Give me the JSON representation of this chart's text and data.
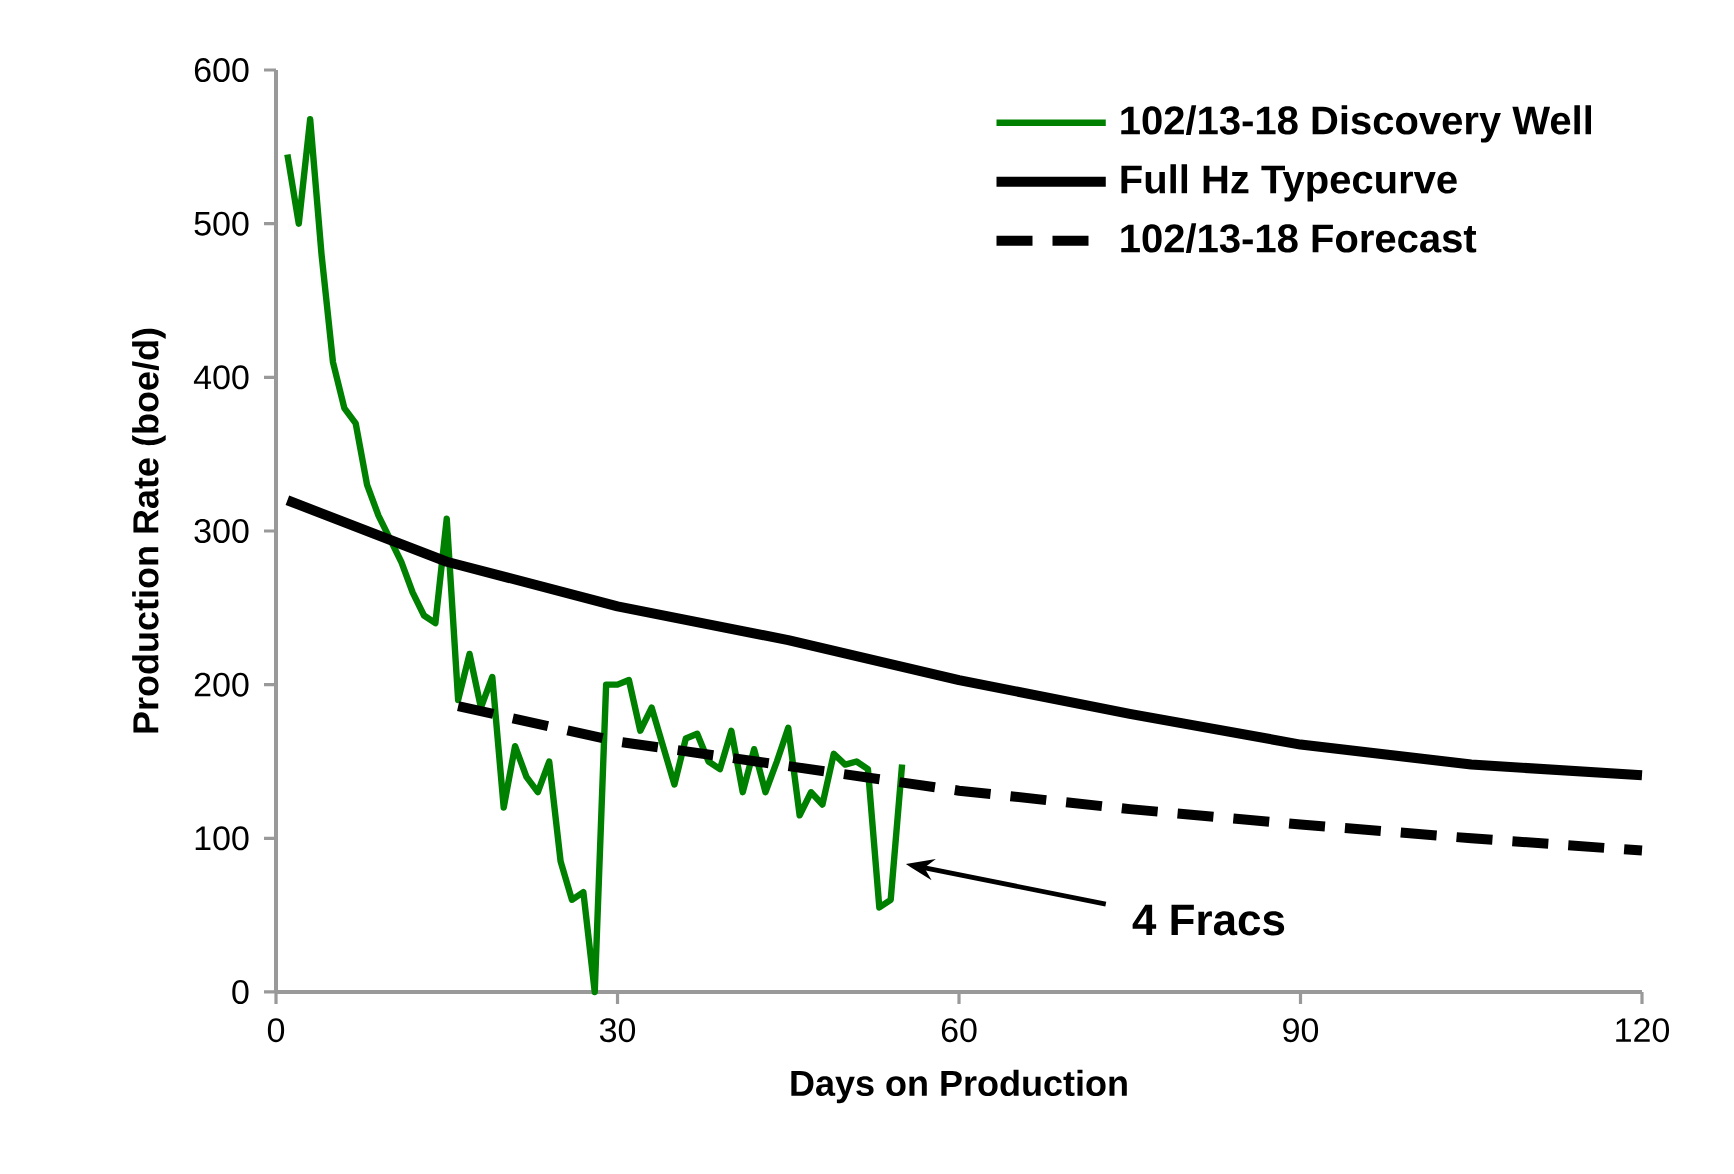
{
  "chart_data": {
    "type": "line",
    "xlabel": "Days on Production",
    "ylabel": "Production Rate (boe/d)",
    "xlim": [
      0,
      120
    ],
    "ylim": [
      0,
      600
    ],
    "xticks": [
      0,
      30,
      60,
      90,
      120
    ],
    "yticks": [
      0,
      100,
      200,
      300,
      400,
      500,
      600
    ],
    "legend": "top right",
    "series": [
      {
        "name": "102/13-18 Discovery Well",
        "color": "#008000",
        "x": [
          1,
          2,
          3,
          4,
          5,
          6,
          7,
          8,
          9,
          10,
          11,
          12,
          13,
          14,
          15,
          16,
          17,
          18,
          19,
          20,
          21,
          22,
          23,
          24,
          25,
          26,
          27,
          28,
          29,
          30,
          31,
          32,
          33,
          34,
          35,
          36,
          37,
          38,
          39,
          40,
          41,
          42,
          43,
          44,
          45,
          46,
          47,
          48,
          49,
          50,
          51,
          52,
          53,
          54,
          55
        ],
        "values": [
          545,
          500,
          568,
          480,
          410,
          380,
          370,
          330,
          310,
          295,
          280,
          260,
          245,
          240,
          308,
          190,
          220,
          185,
          205,
          120,
          160,
          140,
          130,
          150,
          85,
          60,
          65,
          0,
          200,
          200,
          203,
          170,
          185,
          160,
          135,
          165,
          168,
          150,
          145,
          170,
          130,
          158,
          130,
          150,
          172,
          115,
          130,
          122,
          155,
          148,
          150,
          145,
          55,
          60,
          148
        ]
      },
      {
        "name": "Full Hz Typecurve",
        "color": "#000000",
        "x": [
          1,
          15,
          30,
          45,
          60,
          75,
          90,
          105,
          120
        ],
        "values": [
          320,
          280,
          251,
          229,
          203,
          181,
          161,
          148,
          141
        ]
      },
      {
        "name": "102/13-18 Forecast",
        "color": "#000000",
        "line_style": "dashed",
        "x": [
          16,
          30,
          45,
          60,
          75,
          90,
          105,
          120
        ],
        "values": [
          186,
          163,
          147,
          131,
          119,
          109,
          100,
          92
        ]
      }
    ],
    "annotations": [
      "4 Fracs"
    ]
  }
}
